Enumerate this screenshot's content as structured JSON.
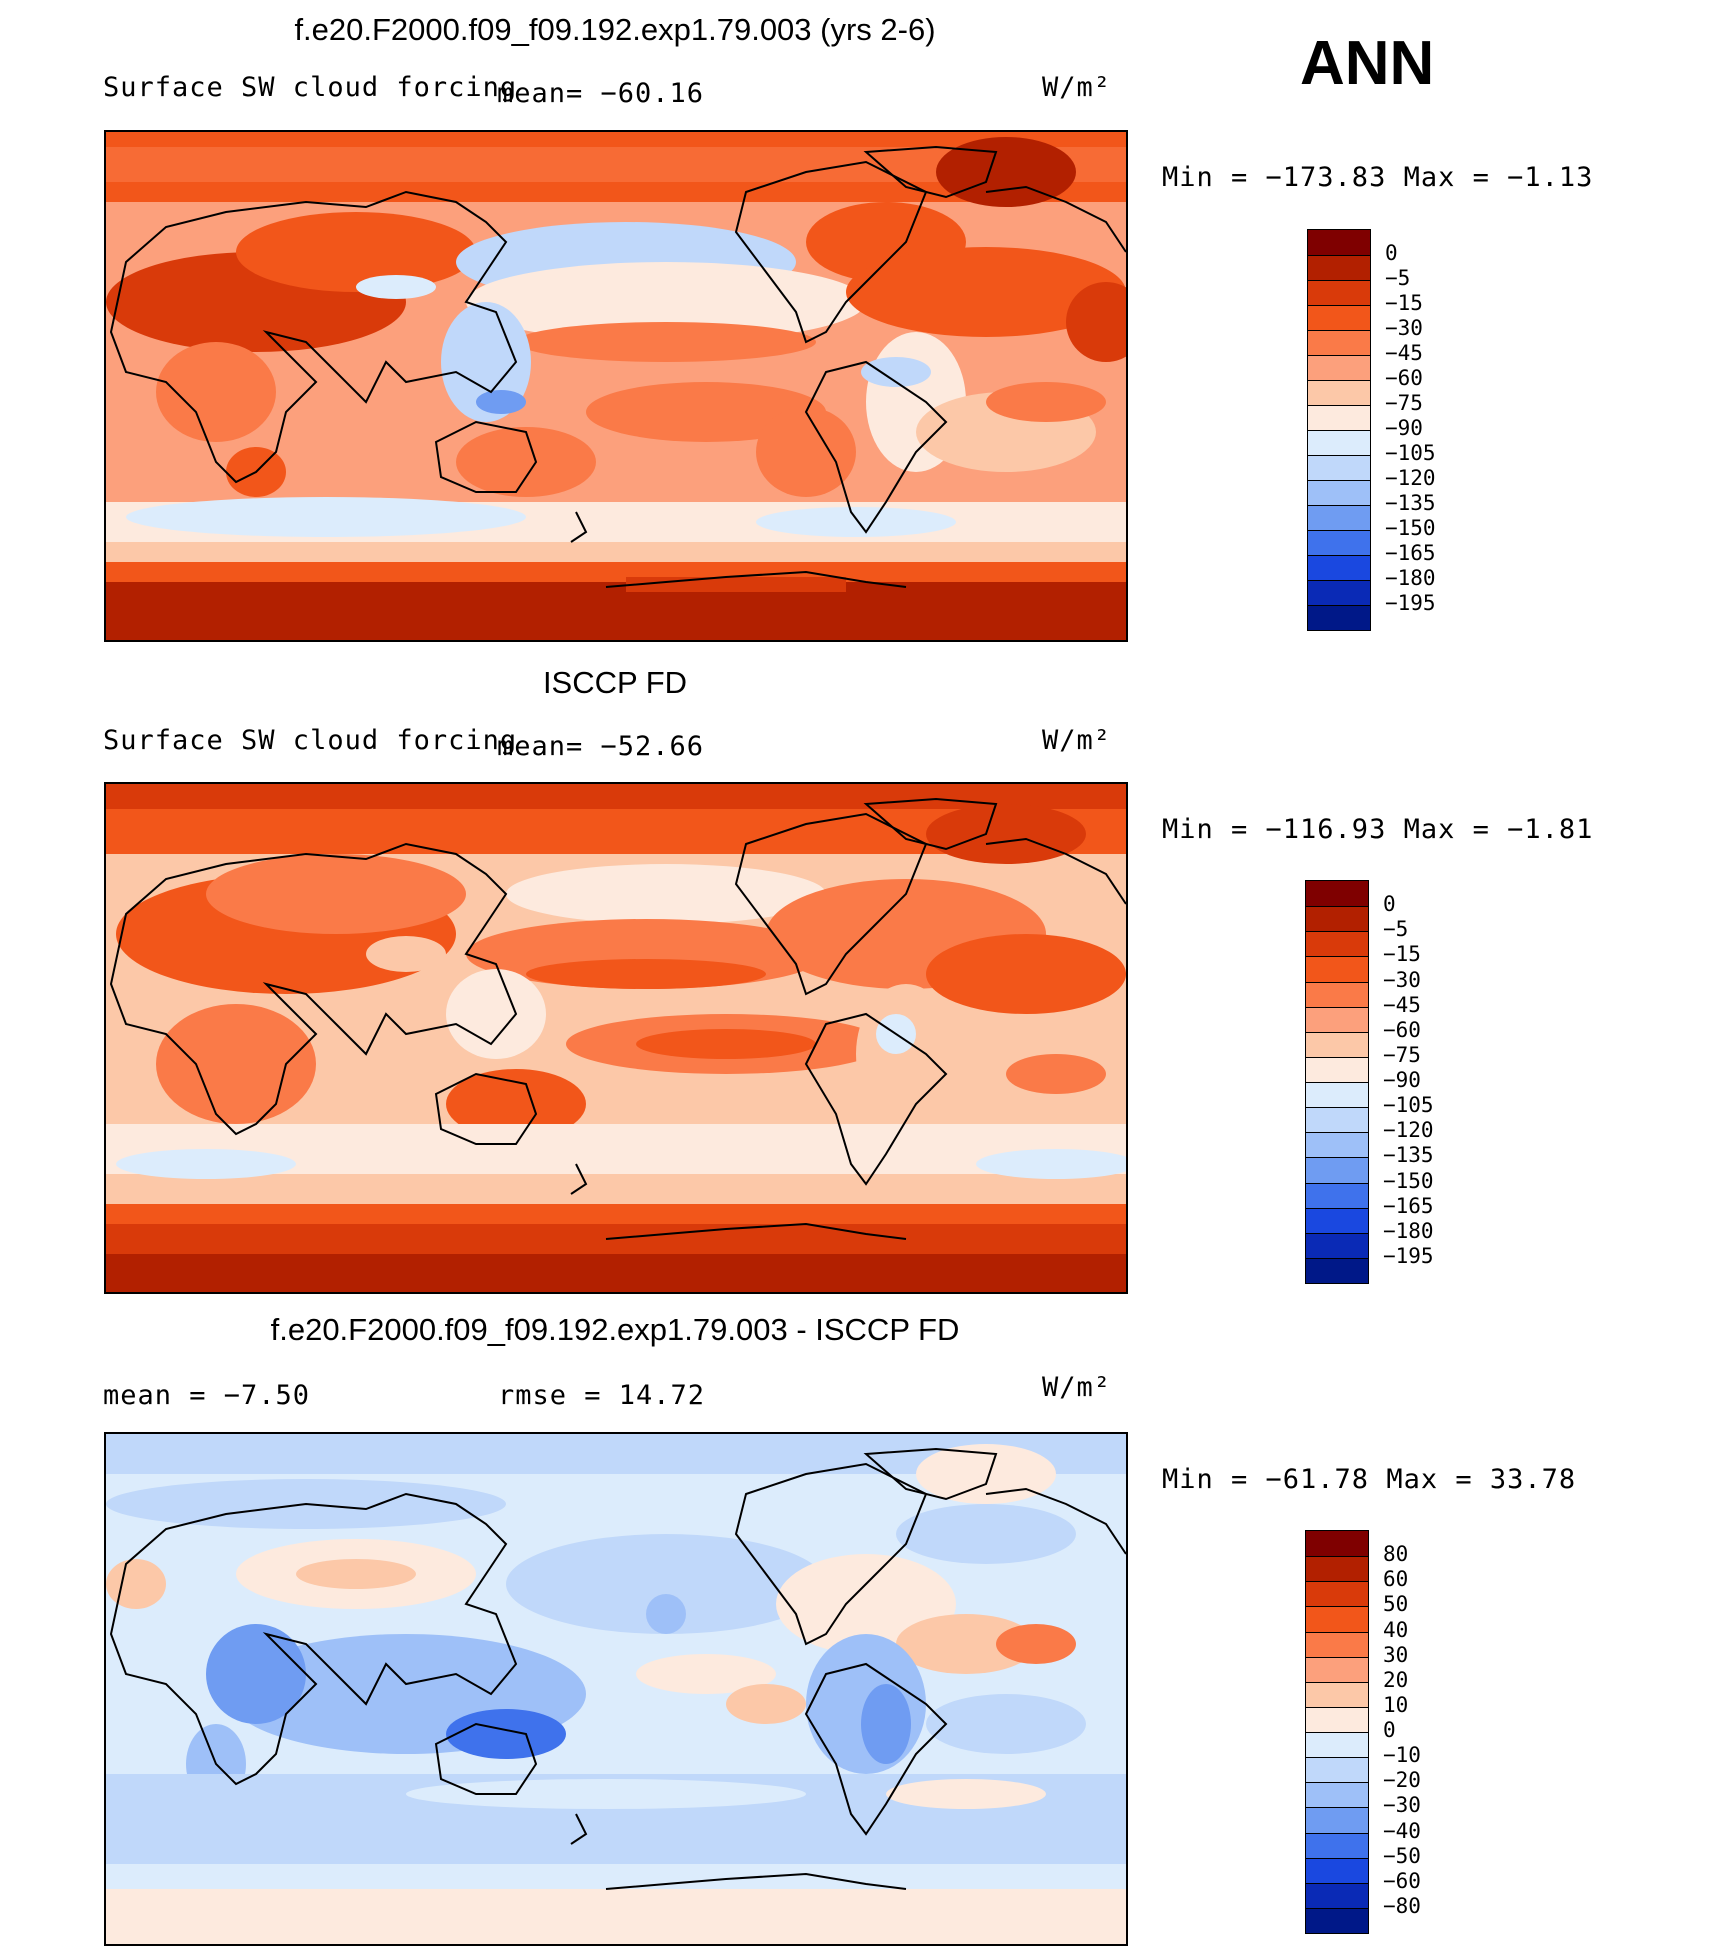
{
  "season": "ANN",
  "palette_abs": [
    "#7f0000",
    "#b22000",
    "#d93a0a",
    "#f2561a",
    "#fa7a48",
    "#fca07c",
    "#fcc8a8",
    "#fdeade",
    "#dcecfc",
    "#c0d8fa",
    "#9ec0f8",
    "#6f9cf2",
    "#3f72ec",
    "#1a48e0",
    "#0a2ab6",
    "#001888",
    "#000a60"
  ],
  "palette_diff": [
    "#7f0000",
    "#b22000",
    "#d93a0a",
    "#f2561a",
    "#fa7a48",
    "#fca07c",
    "#fcc8a8",
    "#fdeade",
    "#dcecfc",
    "#c0d8fa",
    "#9ec0f8",
    "#6f9cf2",
    "#3f72ec",
    "#1a48e0",
    "#0a2ab6",
    "#001888",
    "#000a60"
  ],
  "panels": [
    {
      "title": "f.e20.F2000.f09_f09.192.exp1.79.003 (yrs 2-6)",
      "left_label": "Surface SW cloud forcing",
      "mean_label": "mean= −60.16",
      "units": "W/m²",
      "minmax": "Min = −173.83 Max =  −1.13",
      "ticks": [
        "0",
        "−5",
        "−15",
        "−30",
        "−45",
        "−60",
        "−75",
        "−90",
        "−105",
        "−120",
        "−135",
        "−150",
        "−165",
        "−180",
        "−195"
      ]
    },
    {
      "title": "ISCCP FD",
      "left_label": "Surface SW cloud forcing",
      "mean_label": "mean= −52.66",
      "units": "W/m²",
      "minmax": "Min = −116.93 Max =  −1.81",
      "ticks": [
        "0",
        "−5",
        "−15",
        "−30",
        "−45",
        "−60",
        "−75",
        "−90",
        "−105",
        "−120",
        "−135",
        "−150",
        "−165",
        "−180",
        "−195"
      ]
    },
    {
      "title": "f.e20.F2000.f09_f09.192.exp1.79.003 - ISCCP FD",
      "left_label": "mean =   −7.50",
      "mean_label": "rmse =   14.72",
      "units": "W/m²",
      "minmax": "Min = −61.78 Max =  33.78",
      "ticks": [
        "80",
        "60",
        "50",
        "40",
        "30",
        "20",
        "10",
        "0",
        "−10",
        "−20",
        "−30",
        "−40",
        "−50",
        "−60",
        "−80"
      ]
    }
  ]
}
